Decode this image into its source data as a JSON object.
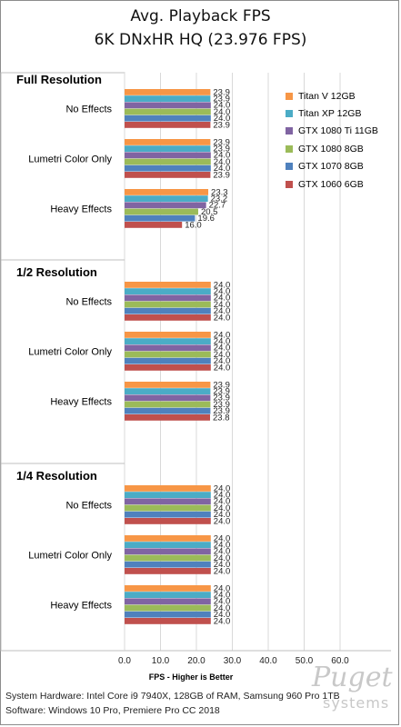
{
  "chart_data": {
    "type": "bar",
    "orientation": "horizontal",
    "title": "Avg. Playback FPS",
    "subtitle": "6K DNxHR HQ (23.976 FPS)",
    "xlabel": "FPS - Higher is Better",
    "xlim": [
      0,
      60
    ],
    "x_ticks": [
      "0.0",
      "10.0",
      "20.0",
      "30.0",
      "40.0",
      "50.0",
      "60.0"
    ],
    "grid": "vertical",
    "legend_position": "top-right",
    "series": [
      {
        "name": "Titan V 12GB",
        "color": "#f79646"
      },
      {
        "name": "Titan XP 12GB",
        "color": "#4bacc6"
      },
      {
        "name": "GTX 1080 Ti 11GB",
        "color": "#8064a2"
      },
      {
        "name": "GTX 1080 8GB",
        "color": "#9bbb59"
      },
      {
        "name": "GTX 1070 8GB",
        "color": "#4f81bd"
      },
      {
        "name": "GTX 1060 6GB",
        "color": "#c0504d"
      }
    ],
    "groups": [
      {
        "name": "Full Resolution",
        "categories": [
          {
            "label": "No Effects",
            "values": [
              23.9,
              23.9,
              24.0,
              24.0,
              24.0,
              23.9
            ]
          },
          {
            "label": "Lumetri Color Only",
            "values": [
              23.9,
              23.9,
              24.0,
              24.0,
              24.0,
              23.9
            ]
          },
          {
            "label": "Heavy Effects",
            "values": [
              23.3,
              23.2,
              22.7,
              20.5,
              19.6,
              16.0
            ]
          }
        ]
      },
      {
        "name": "1/2 Resolution",
        "categories": [
          {
            "label": "No Effects",
            "values": [
              24.0,
              24.0,
              24.0,
              24.0,
              24.0,
              24.0
            ]
          },
          {
            "label": "Lumetri Color Only",
            "values": [
              24.0,
              24.0,
              24.0,
              24.0,
              24.0,
              24.0
            ]
          },
          {
            "label": "Heavy Effects",
            "values": [
              23.9,
              23.9,
              23.9,
              23.9,
              23.9,
              23.8
            ]
          }
        ]
      },
      {
        "name": "1/4 Resolution",
        "categories": [
          {
            "label": "No Effects",
            "values": [
              24.0,
              24.0,
              24.0,
              24.0,
              24.0,
              24.0
            ]
          },
          {
            "label": "Lumetri Color Only",
            "values": [
              24.0,
              24.0,
              24.0,
              24.0,
              24.0,
              24.0
            ]
          },
          {
            "label": "Heavy Effects",
            "values": [
              24.0,
              24.0,
              24.0,
              24.0,
              24.0,
              24.0
            ]
          }
        ]
      }
    ]
  },
  "footer": {
    "line1": "System Hardware: Intel Core i9 7940X, 128GB of RAM, Samsung 960 Pro 1TB",
    "line2": "Software: Windows 10 Pro, Premiere Pro CC 2018"
  },
  "watermark": {
    "script": "Puget",
    "sub": "systems"
  }
}
